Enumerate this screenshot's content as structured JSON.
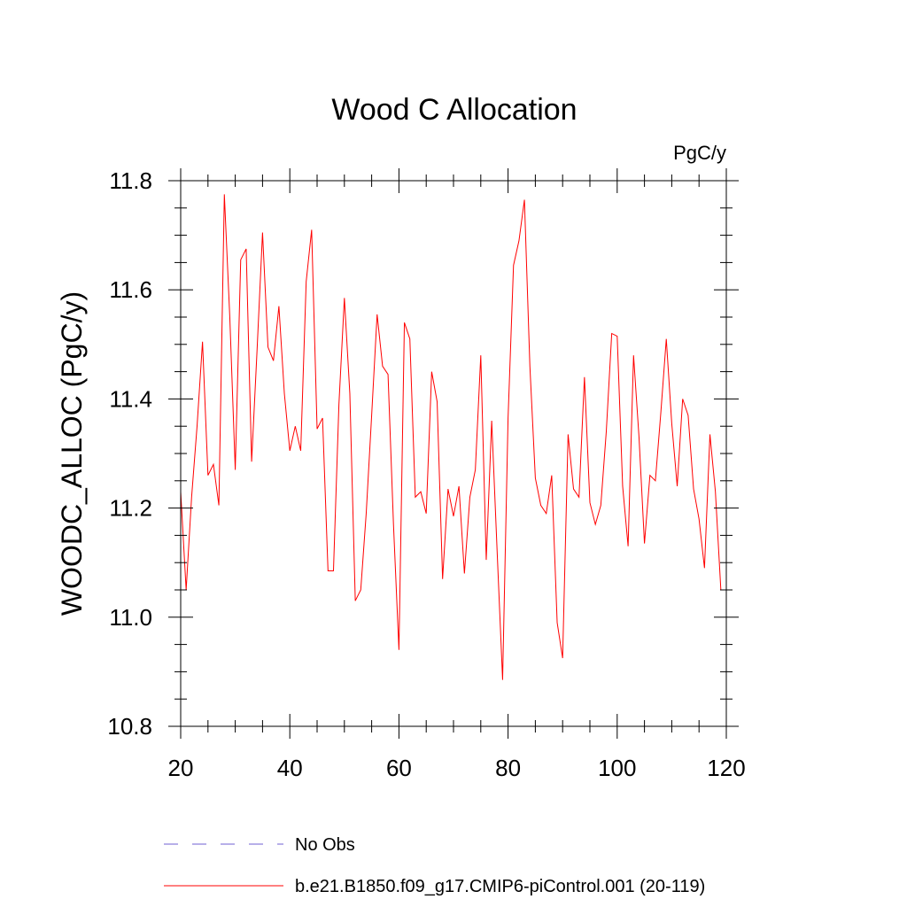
{
  "chart_data": {
    "type": "line",
    "title": "Wood C Allocation",
    "units_label": "PgC/y",
    "xlabel": "",
    "ylabel": "WOODC_ALLOC  (PgC/y)",
    "xlim": [
      20,
      120
    ],
    "ylim": [
      10.8,
      11.8
    ],
    "xticks": [
      20,
      40,
      60,
      80,
      100,
      120
    ],
    "xtick_labels": [
      "20",
      "40",
      "60",
      "80",
      "100",
      "120"
    ],
    "yticks": [
      10.8,
      11.0,
      11.2,
      11.4,
      11.6,
      11.8
    ],
    "ytick_labels": [
      "10.8",
      "11.0",
      "11.2",
      "11.4",
      "11.6",
      "11.8"
    ],
    "x_minor_step": 5,
    "y_minor_step": 0.05,
    "grid": false,
    "series": [
      {
        "name": "b.e21.B1850.f09_g17.CMIP6-piControl.001 (20-119)",
        "color": "#ff0000",
        "style": "solid",
        "x": [
          20,
          21,
          22,
          23,
          24,
          25,
          26,
          27,
          28,
          29,
          30,
          31,
          32,
          33,
          34,
          35,
          36,
          37,
          38,
          39,
          40,
          41,
          42,
          43,
          44,
          45,
          46,
          47,
          48,
          49,
          50,
          51,
          52,
          53,
          54,
          55,
          56,
          57,
          58,
          59,
          60,
          61,
          62,
          63,
          64,
          65,
          66,
          67,
          68,
          69,
          70,
          71,
          72,
          73,
          74,
          75,
          76,
          77,
          78,
          79,
          80,
          81,
          82,
          83,
          84,
          85,
          86,
          87,
          88,
          89,
          90,
          91,
          92,
          93,
          94,
          95,
          96,
          97,
          98,
          99,
          100,
          101,
          102,
          103,
          104,
          105,
          106,
          107,
          108,
          109,
          110,
          111,
          112,
          113,
          114,
          115,
          116,
          117,
          118,
          119
        ],
        "values": [
          11.23,
          11.05,
          11.22,
          11.35,
          11.505,
          11.26,
          11.28,
          11.205,
          11.775,
          11.55,
          11.27,
          11.655,
          11.675,
          11.285,
          11.49,
          11.705,
          11.495,
          11.47,
          11.57,
          11.41,
          11.305,
          11.35,
          11.305,
          11.615,
          11.71,
          11.345,
          11.365,
          11.085,
          11.085,
          11.39,
          11.585,
          11.41,
          11.03,
          11.05,
          11.19,
          11.37,
          11.555,
          11.46,
          11.445,
          11.17,
          10.94,
          11.54,
          11.51,
          11.22,
          11.23,
          11.19,
          11.45,
          11.395,
          11.07,
          11.235,
          11.185,
          11.24,
          11.08,
          11.22,
          11.27,
          11.48,
          11.105,
          11.36,
          11.12,
          10.885,
          11.365,
          11.645,
          11.69,
          11.765,
          11.46,
          11.255,
          11.205,
          11.19,
          11.26,
          10.99,
          10.925,
          11.335,
          11.235,
          11.22,
          11.44,
          11.21,
          11.17,
          11.205,
          11.34,
          11.52,
          11.515,
          11.24,
          11.13,
          11.48,
          11.33,
          11.135,
          11.26,
          11.25,
          11.375,
          11.51,
          11.355,
          11.24,
          11.4,
          11.37,
          11.235,
          11.18,
          11.09,
          11.335,
          11.23,
          11.05
        ]
      }
    ],
    "legend": [
      {
        "label": "No Obs",
        "color": "#6f5fd3",
        "style": "dashed"
      },
      {
        "label": "b.e21.B1850.f09_g17.CMIP6-piControl.001 (20-119)",
        "color": "#ff0000",
        "style": "solid"
      }
    ]
  }
}
